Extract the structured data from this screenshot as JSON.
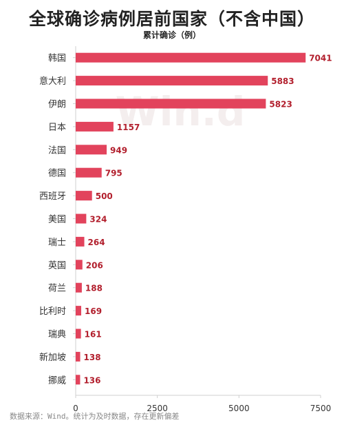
{
  "title": "全球确诊病例居前国家（不含中国）",
  "subtitle": "累计确诊（例）",
  "footer": "数据来源：Wind。统计为及时数据，存在更新偏差",
  "watermark": "Win.d",
  "colors": {
    "bar": "#e2435c",
    "label": "#b21f2d",
    "axis": "#cfcfcf",
    "text": "#333333"
  },
  "chart_data": {
    "type": "bar",
    "orientation": "horizontal",
    "title": "全球确诊病例居前国家（不含中国）",
    "subtitle": "累计确诊（例）",
    "categories": [
      "韩国",
      "意大利",
      "伊朗",
      "日本",
      "法国",
      "德国",
      "西班牙",
      "美国",
      "瑞士",
      "英国",
      "荷兰",
      "比利时",
      "瑞典",
      "新加坡",
      "挪威"
    ],
    "values": [
      7041,
      5883,
      5823,
      1157,
      949,
      795,
      500,
      324,
      264,
      206,
      188,
      169,
      161,
      138,
      136
    ],
    "xlim": [
      0,
      7500
    ],
    "xticks": [
      0,
      2500,
      5000,
      7500
    ],
    "grid": false,
    "legend": "none"
  }
}
